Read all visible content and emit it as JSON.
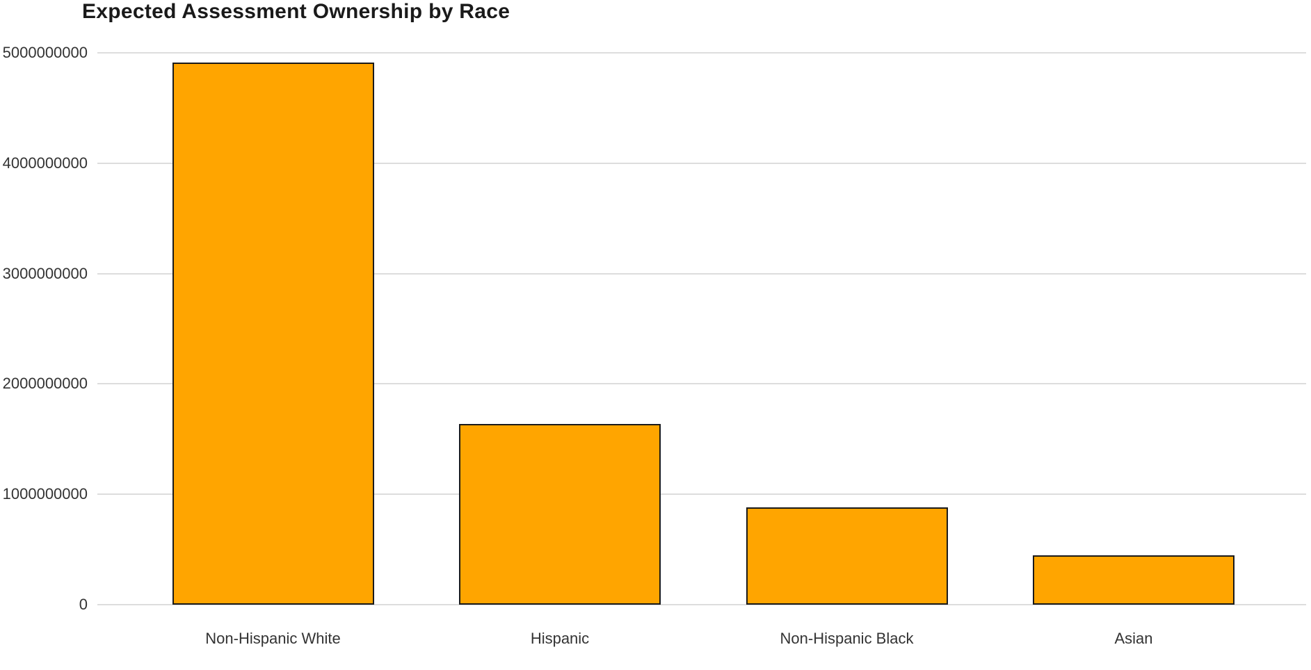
{
  "chart_data": {
    "type": "bar",
    "title": "Expected Assessment Ownership by Race",
    "categories": [
      "Non-Hispanic White",
      "Hispanic",
      "Non-Hispanic Black",
      "Asian"
    ],
    "values": [
      4910000000,
      1640000000,
      880000000,
      445000000
    ],
    "xlabel": "",
    "ylabel": "",
    "ylim": [
      0,
      5000000000
    ],
    "ytick_interval": 1000000000,
    "ytick_labels": [
      "0",
      "1000000000",
      "2000000000",
      "3000000000",
      "4000000000",
      "5000000000"
    ],
    "grid": "horizontal",
    "legend": "none",
    "bar_color": "#FFA500",
    "bar_border_color": "#1A1A1A",
    "gridline_color": "#DDDDDD",
    "background_color": "#FFFFFF",
    "title_color": "#1A1A1A",
    "axis_text_color": "#333333"
  }
}
